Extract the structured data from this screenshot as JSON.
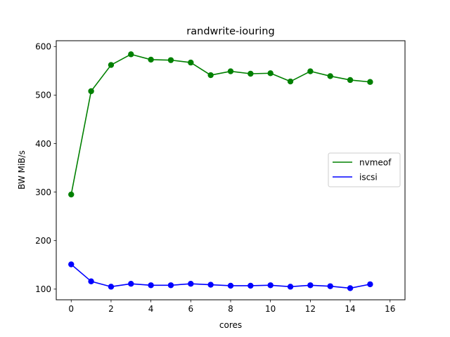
{
  "chart_data": {
    "type": "line",
    "title": "randwrite-iouring",
    "xlabel": "cores",
    "ylabel": "BW MiB/s",
    "xlim": [
      -0.75,
      16.75
    ],
    "ylim": [
      78,
      612
    ],
    "xticks": [
      0,
      2,
      4,
      6,
      8,
      10,
      12,
      14,
      16
    ],
    "yticks": [
      100,
      200,
      300,
      400,
      500,
      600
    ],
    "x": [
      0,
      1,
      2,
      3,
      4,
      5,
      6,
      7,
      8,
      9,
      10,
      11,
      12,
      13,
      14,
      15
    ],
    "series": [
      {
        "name": "nvmeof",
        "color": "#008000",
        "values": [
          295,
          508,
          562,
          584,
          573,
          572,
          567,
          541,
          549,
          544,
          545,
          528,
          549,
          539,
          531,
          527
        ]
      },
      {
        "name": "iscsi",
        "color": "#0000ff",
        "values": [
          151,
          116,
          105,
          111,
          108,
          108,
          111,
          109,
          107,
          107,
          108,
          105,
          108,
          106,
          102,
          110
        ]
      }
    ],
    "grid": false,
    "legend": "center-right",
    "markers": true
  }
}
